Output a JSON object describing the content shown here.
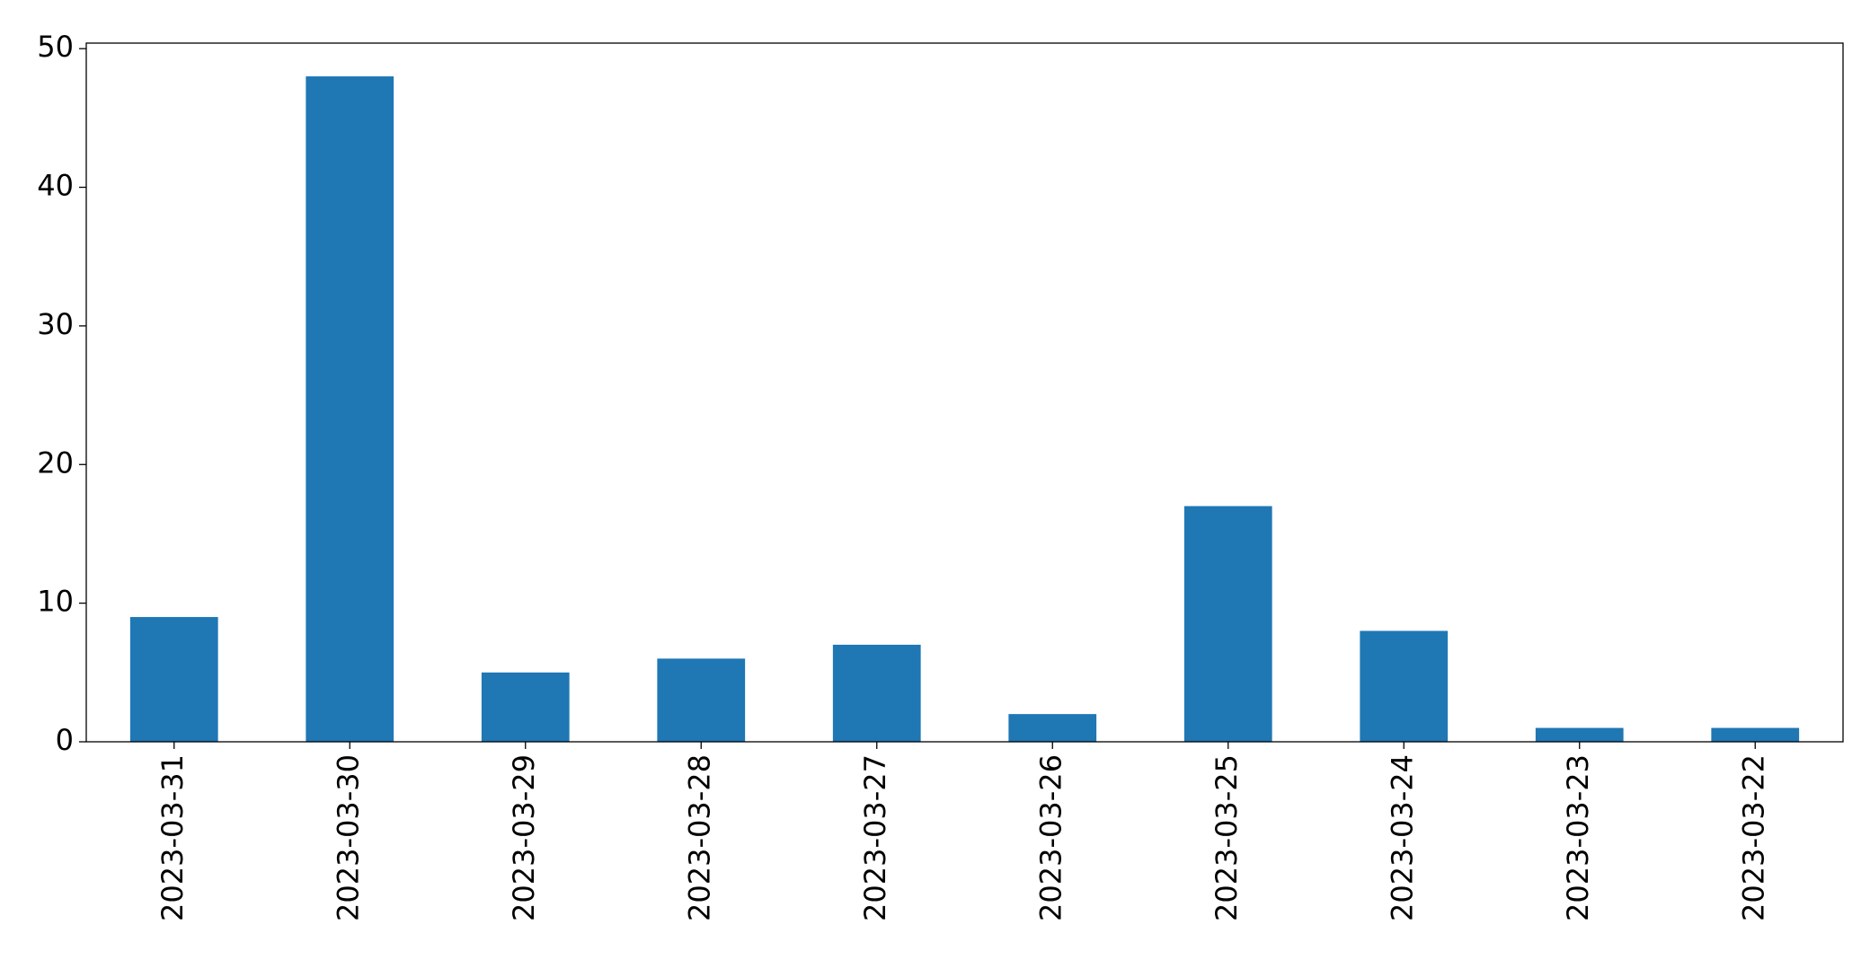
{
  "chart_data": {
    "type": "bar",
    "categories": [
      "2023-03-31",
      "2023-03-30",
      "2023-03-29",
      "2023-03-28",
      "2023-03-27",
      "2023-03-26",
      "2023-03-25",
      "2023-03-24",
      "2023-03-23",
      "2023-03-22"
    ],
    "values": [
      9,
      48,
      5,
      6,
      7,
      2,
      17,
      8,
      1,
      1
    ],
    "color": "#1f77b4",
    "ylim": [
      0,
      50.4
    ],
    "yticks": [
      0,
      10,
      20,
      30,
      40,
      50
    ],
    "grid": false
  }
}
